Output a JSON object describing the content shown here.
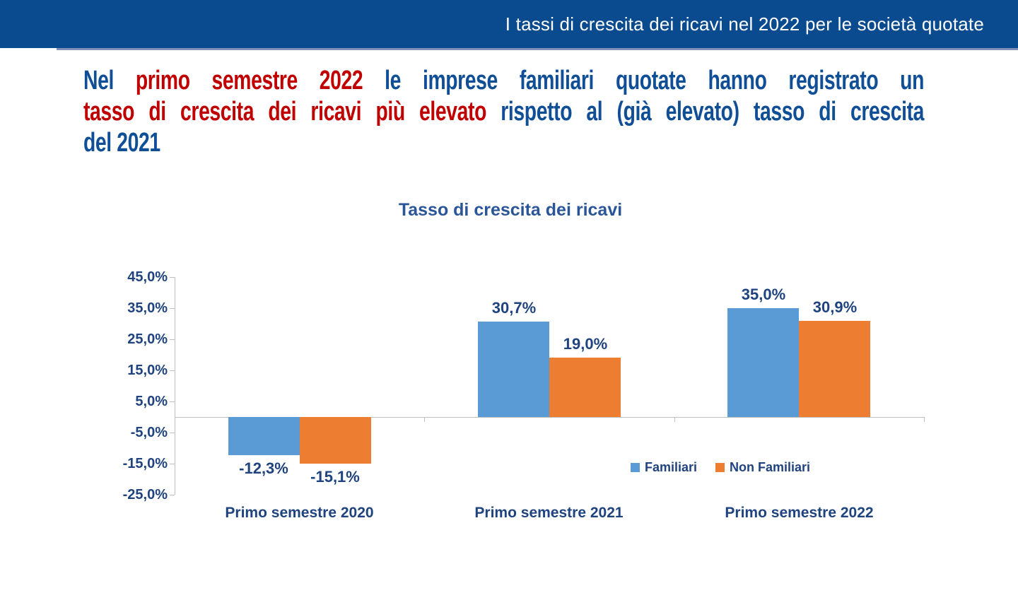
{
  "header": {
    "title": "I tassi di crescita dei ricavi nel 2022 per le società quotate",
    "bg_color": "#0A4A8E"
  },
  "headline": {
    "lines": [
      {
        "segments": [
          {
            "text": "Nel ",
            "color": "blue"
          },
          {
            "text": "primo semestre 2022",
            "color": "red"
          },
          {
            "text": " le imprese familiari quotate hanno registrato un",
            "color": "blue"
          }
        ]
      },
      {
        "segments": [
          {
            "text": "tasso di crescita dei ricavi più elevato",
            "color": "red"
          },
          {
            "text": " rispetto al (già elevato) tasso di crescita",
            "color": "blue"
          }
        ]
      },
      {
        "segments": [
          {
            "text": "del 2021",
            "color": "blue"
          }
        ]
      }
    ],
    "blue_color": "#104E96",
    "red_color": "#C00000"
  },
  "chart_data": {
    "type": "bar",
    "title": "Tasso di crescita dei ricavi",
    "categories": [
      "Primo semestre 2020",
      "Primo semestre 2021",
      "Primo semestre 2022"
    ],
    "series": [
      {
        "name": "Familiari",
        "color": "#5B9BD5",
        "values": [
          -12.3,
          30.7,
          35.0
        ],
        "labels": [
          "-12,3%",
          "30,7%",
          "35,0%"
        ]
      },
      {
        "name": "Non Familiari",
        "color": "#ED7D31",
        "values": [
          -15.1,
          19.0,
          30.9
        ],
        "labels": [
          "-15,1%",
          "19,0%",
          "30,9%"
        ]
      }
    ],
    "ylim": [
      -25,
      45
    ],
    "ytick_step": 10,
    "ytick_labels": [
      "45,0%",
      "35,0%",
      "25,0%",
      "15,0%",
      "5,0%",
      "-5,0%",
      "-15,0%",
      "-25,0%"
    ],
    "grid": false,
    "legend_position": "inside-bottom-right",
    "axis_color": "#BFBFBF",
    "label_color": "#1F437E"
  }
}
